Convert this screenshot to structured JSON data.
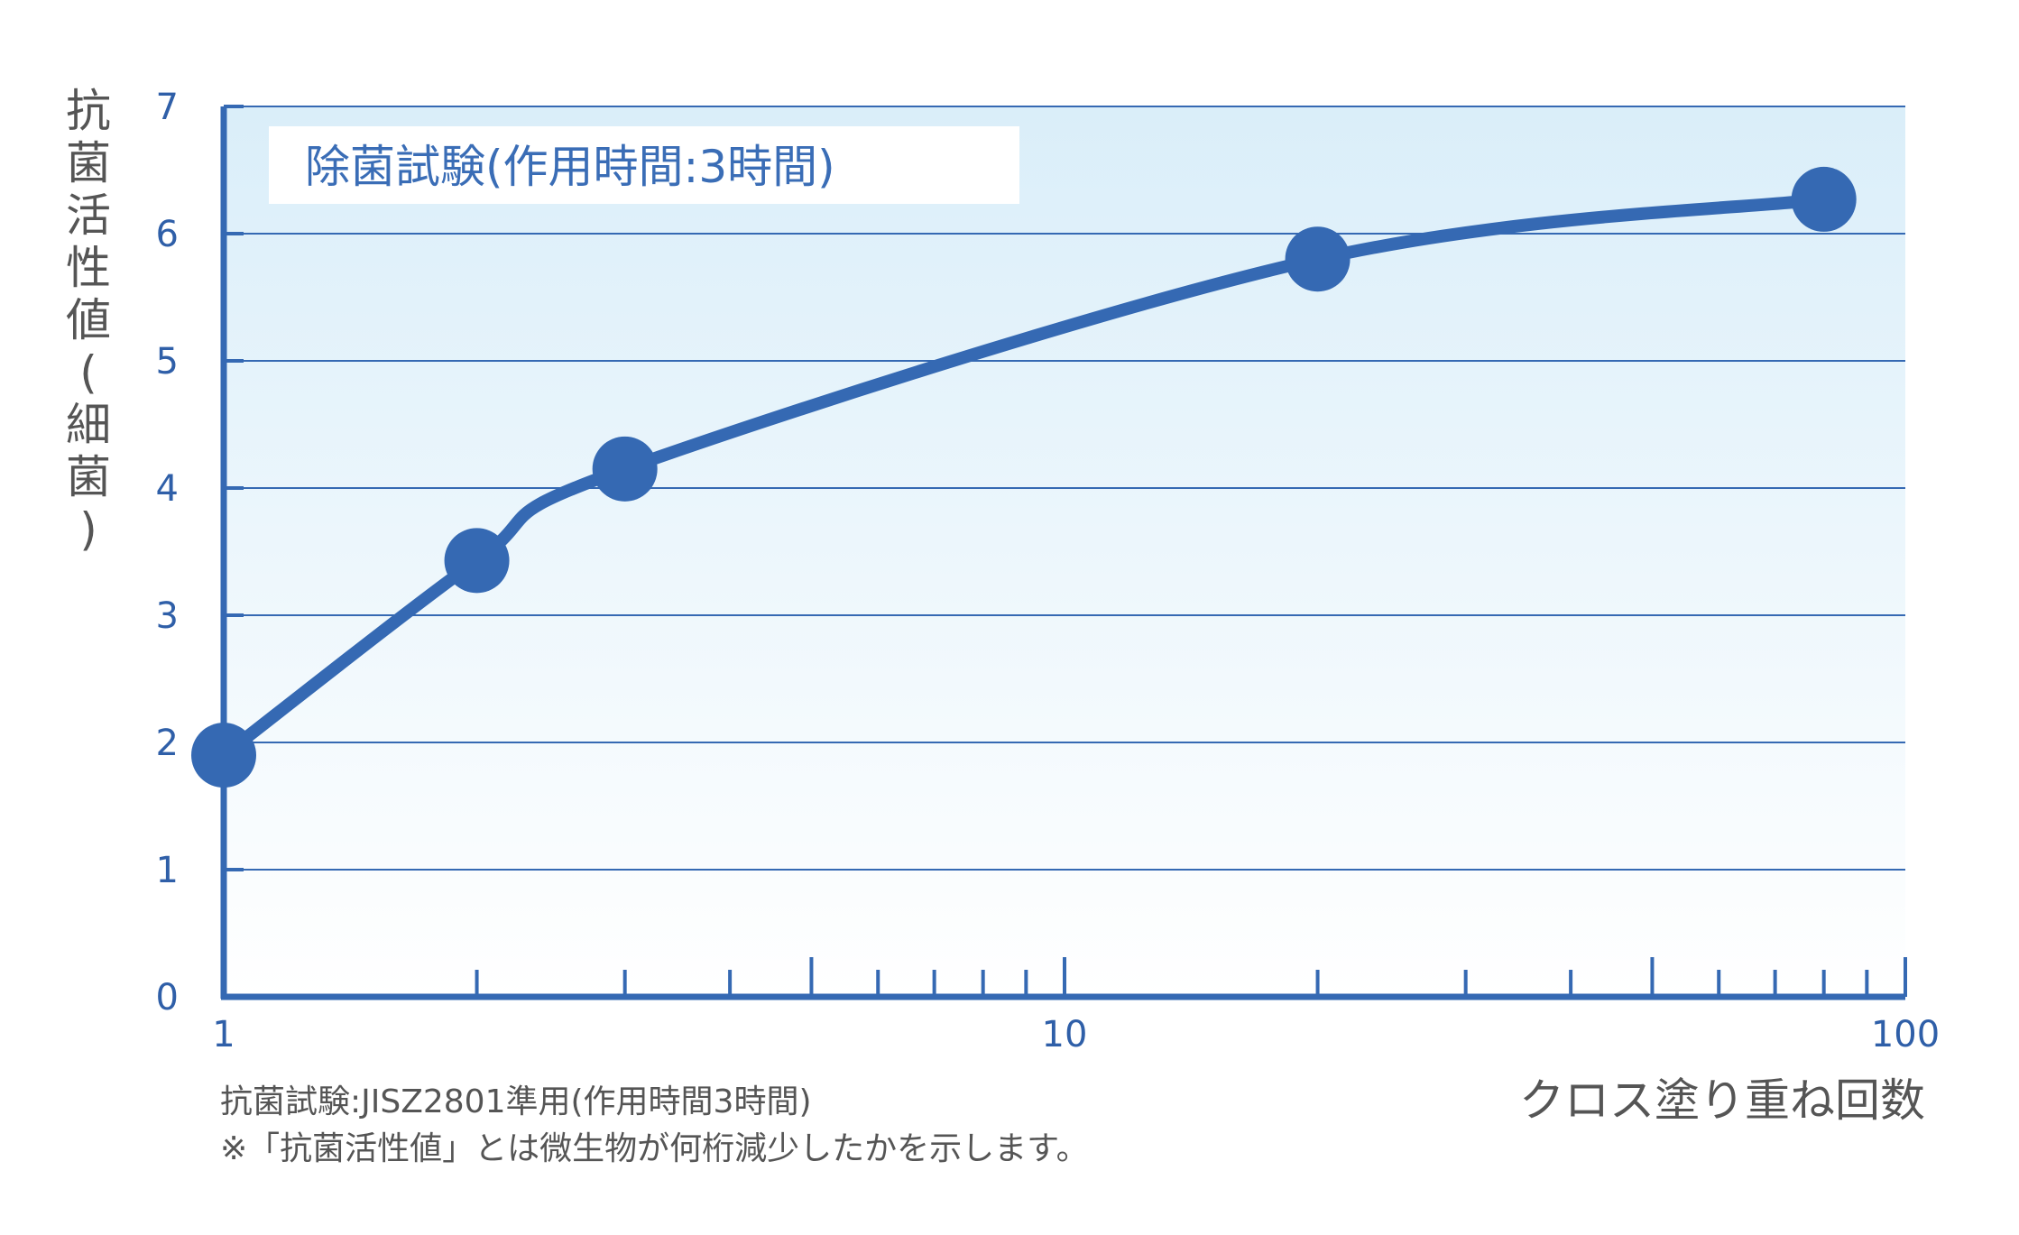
{
  "chart_data": {
    "type": "line",
    "title": "除菌試験(作用時間:3時間)",
    "xlabel": "クロス塗り重ね回数",
    "ylabel": "抗菌活性値(細菌)",
    "x_scale": "log",
    "xlim": [
      1,
      100
    ],
    "ylim": [
      0,
      7
    ],
    "x_ticks": [
      "1",
      "10",
      "100"
    ],
    "y_ticks": [
      "0",
      "1",
      "2",
      "3",
      "4",
      "5",
      "6",
      "7"
    ],
    "grid": true,
    "series": [
      {
        "x": [
          1,
          2,
          3,
          20,
          80
        ],
        "values": [
          1.9,
          3.43,
          4.15,
          5.8,
          6.27
        ]
      }
    ],
    "colors": {
      "line": "#3569b3",
      "grid": "#3569b3",
      "axis": "#3569b3",
      "bg_top": "#daeef9",
      "bg_bottom": "#ffffff"
    }
  },
  "notes": [
    "抗菌試験:JISZ2801準用(作用時間3時間)",
    "※「抗菌活性値」とは微生物が何桁減少したかを示します。"
  ]
}
